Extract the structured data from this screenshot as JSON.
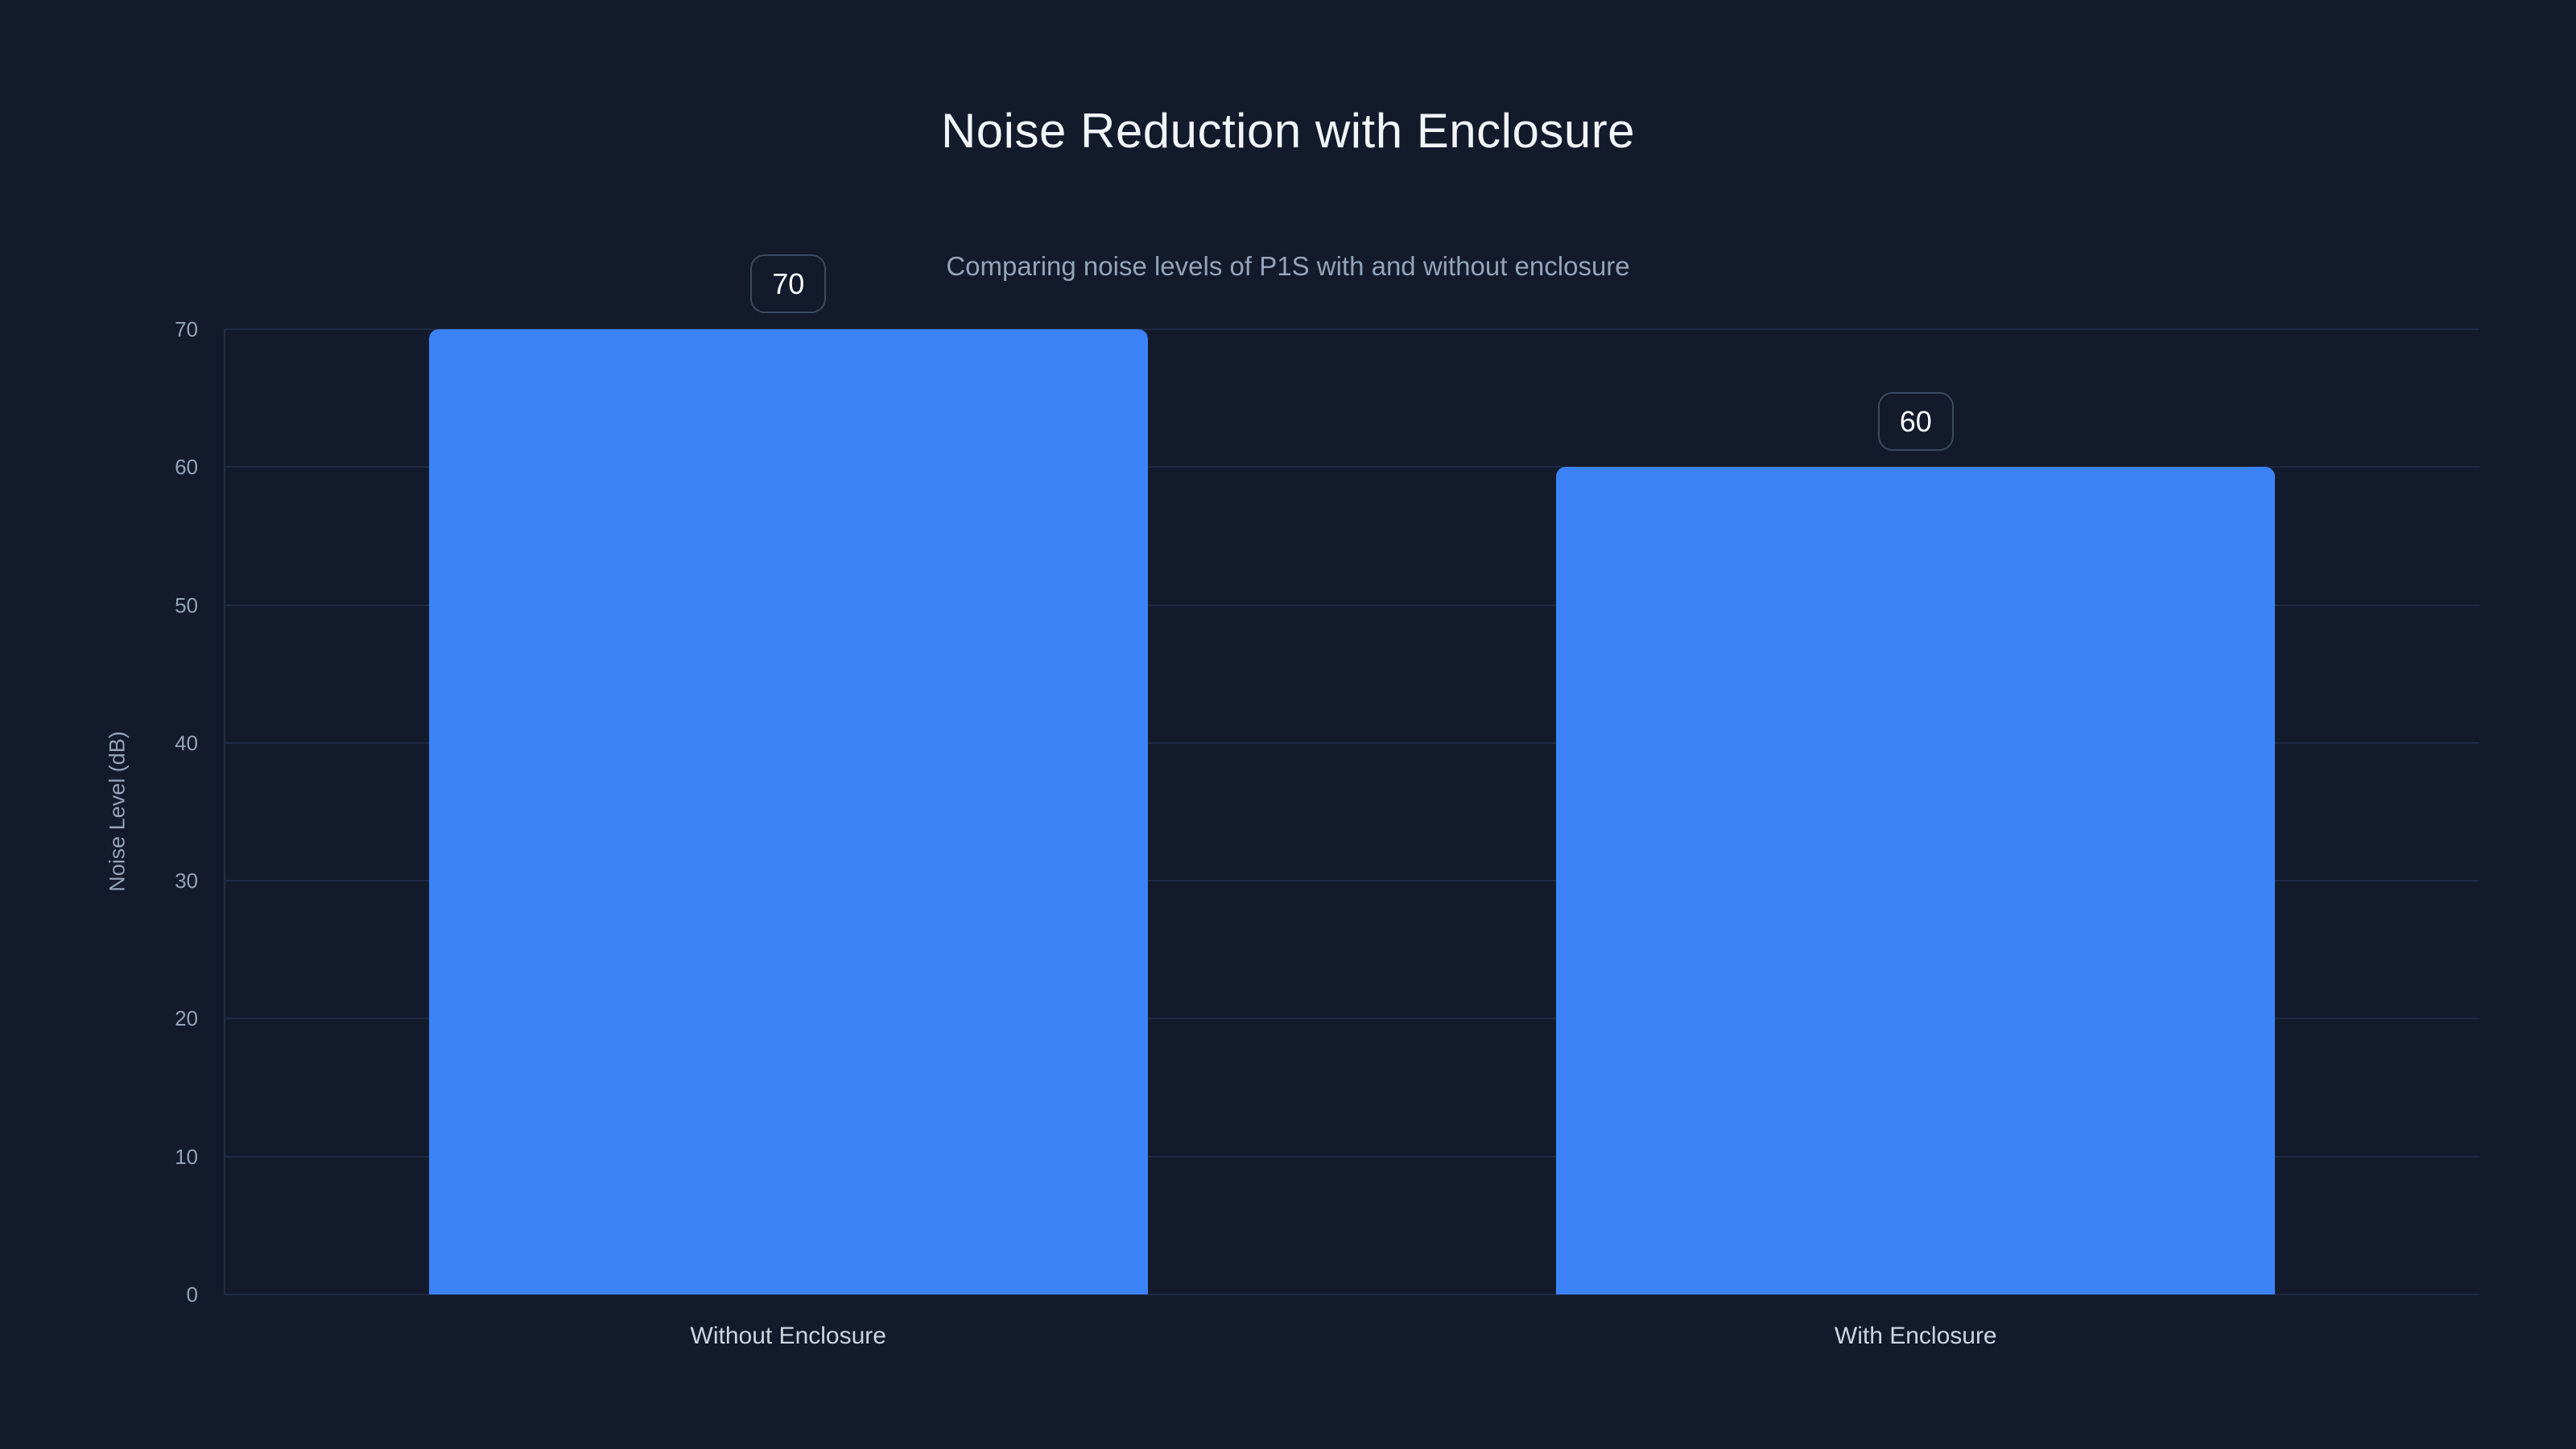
{
  "chart_data": {
    "type": "bar",
    "title": "Noise Reduction with Enclosure",
    "subtitle": "Comparing noise levels of P1S with and without enclosure",
    "ylabel": "Noise Level (dB)",
    "xlabel": "",
    "categories": [
      "Without Enclosure",
      "With Enclosure"
    ],
    "values": [
      70,
      60
    ],
    "value_labels": [
      "70",
      "60"
    ],
    "yticks": [
      0,
      10,
      20,
      30,
      40,
      50,
      60,
      70
    ],
    "ylim": [
      0,
      70
    ],
    "grid": "horizontal-only",
    "legend_position": "none",
    "colors": {
      "background": "#121a2b",
      "bar": "#3b82f6",
      "gridline": "#1f2940",
      "axis_line": "#232e45",
      "tick_label": "#94a3b8",
      "category_label": "#cbd5e1",
      "title": "#f1f5f9",
      "subtitle": "#94a3b8",
      "badge_border": "#3b4a5f",
      "badge_text": "#f8fafc"
    }
  }
}
